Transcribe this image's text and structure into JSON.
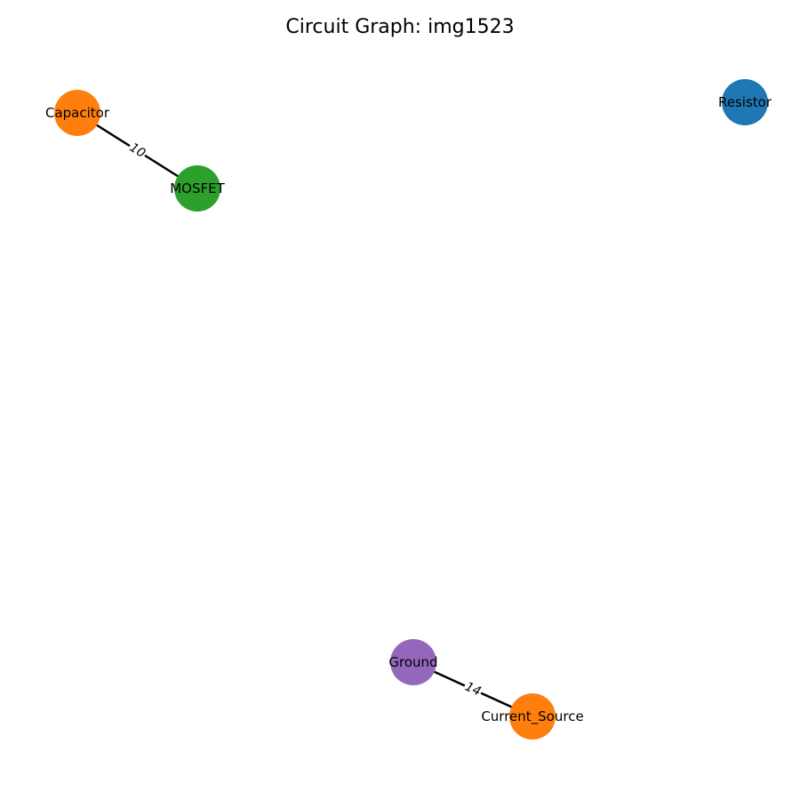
{
  "title": "Circuit Graph: img1523",
  "colors": {
    "blue": "#1f77b4",
    "orange": "#ff7f0e",
    "green": "#2ca02c",
    "purple": "#9467bd",
    "edge": "#000000"
  },
  "nodes": [
    {
      "id": "capacitor",
      "label": "Capacitor",
      "color": "#ff7f0e"
    },
    {
      "id": "mosfet",
      "label": "MOSFET",
      "color": "#2ca02c"
    },
    {
      "id": "resistor",
      "label": "Resistor",
      "color": "#1f77b4"
    },
    {
      "id": "ground",
      "label": "Ground",
      "color": "#9467bd"
    },
    {
      "id": "current_source",
      "label": "Current_Source",
      "color": "#ff7f0e"
    }
  ],
  "edges": [
    {
      "from": "capacitor",
      "to": "mosfet",
      "label": "10"
    },
    {
      "from": "ground",
      "to": "current_source",
      "label": "14"
    }
  ]
}
